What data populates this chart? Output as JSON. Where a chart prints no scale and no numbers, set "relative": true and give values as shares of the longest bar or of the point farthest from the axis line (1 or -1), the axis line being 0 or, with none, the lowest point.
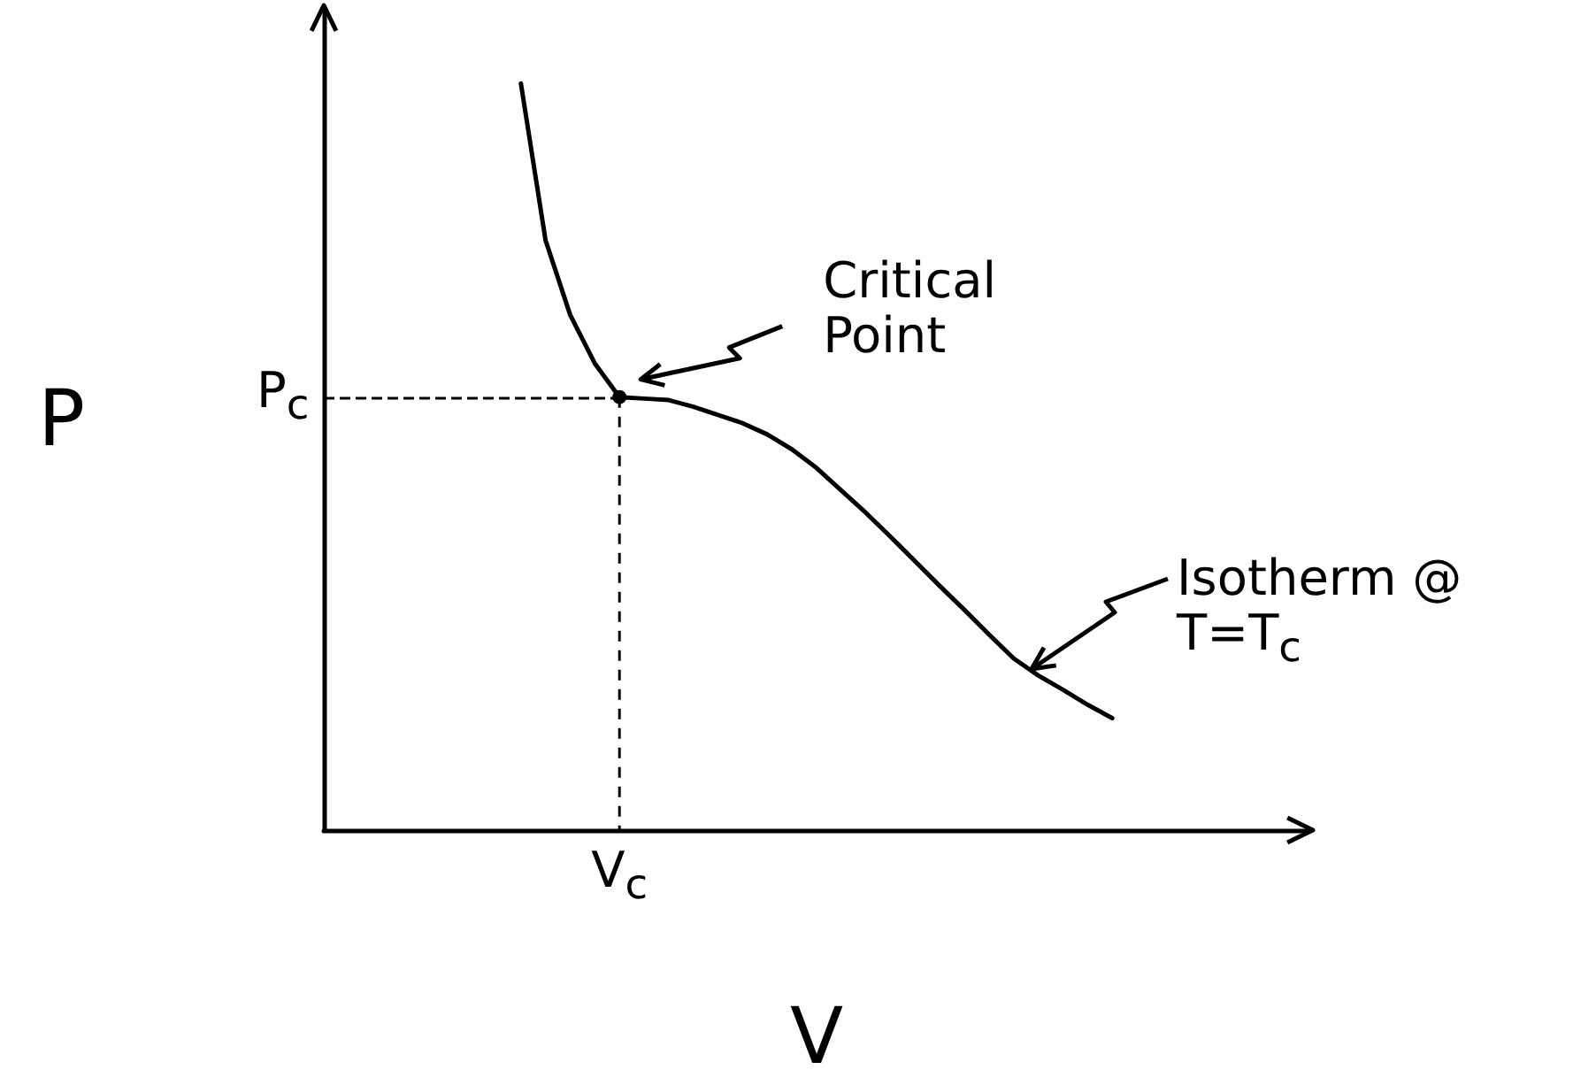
{
  "chart_data": {
    "type": "line",
    "relative": true,
    "xlabel": "V",
    "ylabel": "P",
    "grid": false,
    "marker": "none",
    "line_style": "solid",
    "categories": [
      null,
      null,
      null,
      null,
      null,
      null,
      null,
      null,
      null,
      null,
      null,
      null,
      null,
      null,
      null,
      null,
      null,
      null,
      null,
      null,
      null,
      null,
      null,
      null,
      null,
      null,
      null,
      null,
      null,
      null,
      null,
      null,
      null,
      null,
      null,
      null,
      null,
      null,
      null,
      null,
      null
    ],
    "series": [
      {
        "color": "#000000",
        "values": [
          null,
          null,
          null,
          null,
          null,
          null,
          null,
          null,
          1.0,
          0.79,
          0.69,
          0.625,
          0.58,
          0.578,
          0.576,
          0.567,
          0.556,
          0.545,
          0.53,
          0.51,
          0.485,
          0.455,
          0.425,
          0.393,
          0.36,
          0.327,
          0.295,
          0.262,
          0.23,
          0.207,
          0.188,
          0.168,
          0.15,
          null,
          null,
          null,
          null,
          null,
          null,
          null,
          null
        ]
      }
    ],
    "ref_lines": [
      {
        "axis": "y",
        "value": 0.58,
        "label": "P$_{c}$",
        "line_style": "dashed",
        "color": "#000000"
      }
    ],
    "annotations": [
      "Critical Point",
      "Isotherm @ T=T$_{c}$",
      "V$_{c}$"
    ]
  }
}
